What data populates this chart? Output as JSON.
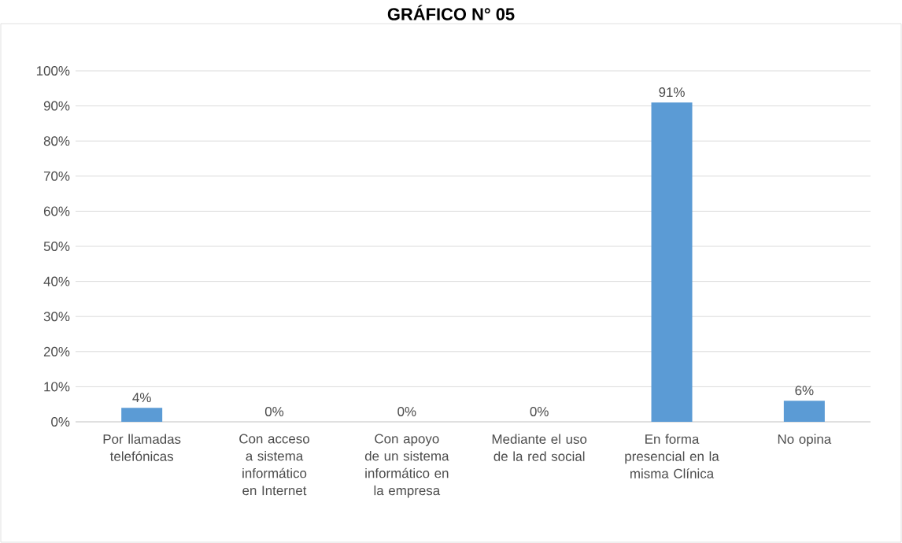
{
  "chart_data": {
    "type": "bar",
    "title": "GRÁFICO N° 05",
    "categories": [
      "Por llamadas telefónicas",
      "Con acceso a sistema informático en Internet",
      "Con apoyo de un sistema informático en la empresa",
      "Mediante el uso de la red social",
      "En forma presencial en la misma Clínica",
      "No opina"
    ],
    "values": [
      4,
      0,
      0,
      0,
      91,
      6
    ],
    "value_labels": [
      "4%",
      "0%",
      "0%",
      "0%",
      "91%",
      "6%"
    ],
    "color": "#5b9bd5",
    "ylim": [
      0,
      100
    ],
    "yticks": [
      {
        "value": 0,
        "label": "0%"
      },
      {
        "value": 10,
        "label": "10%"
      },
      {
        "value": 20,
        "label": "20%"
      },
      {
        "value": 30,
        "label": "30%"
      },
      {
        "value": 40,
        "label": "40%"
      },
      {
        "value": 50,
        "label": "50%"
      },
      {
        "value": 60,
        "label": "60%"
      },
      {
        "value": 70,
        "label": "70%"
      },
      {
        "value": 80,
        "label": "80%"
      },
      {
        "value": 90,
        "label": "90%"
      },
      {
        "value": 100,
        "label": "100%"
      }
    ],
    "grid": "y"
  }
}
